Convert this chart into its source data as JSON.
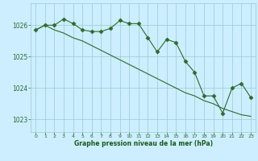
{
  "series1_x": [
    0,
    1,
    2,
    3,
    4,
    5,
    6,
    7,
    8,
    9,
    10,
    11,
    12,
    13,
    14,
    15,
    16,
    17,
    18,
    19,
    20,
    21,
    22,
    23
  ],
  "series1_y": [
    1025.85,
    1026.0,
    1026.0,
    1026.2,
    1026.05,
    1025.85,
    1025.8,
    1025.8,
    1025.9,
    1026.15,
    1026.05,
    1026.05,
    1025.6,
    1025.15,
    1025.55,
    1025.45,
    1024.85,
    1024.5,
    1023.75,
    1023.75,
    1023.2,
    1024.0,
    1024.15,
    1023.7
  ],
  "series2_x": [
    0,
    1,
    2,
    3,
    4,
    5,
    6,
    7,
    8,
    9,
    10,
    11,
    12,
    13,
    14,
    15,
    16,
    17,
    18,
    19,
    20,
    21,
    22,
    23
  ],
  "series2_y": [
    1025.85,
    1026.0,
    1025.85,
    1025.75,
    1025.6,
    1025.5,
    1025.35,
    1025.2,
    1025.05,
    1024.9,
    1024.75,
    1024.6,
    1024.45,
    1024.3,
    1024.15,
    1024.0,
    1023.85,
    1023.75,
    1023.6,
    1023.5,
    1023.35,
    1023.25,
    1023.15,
    1023.1
  ],
  "line_color": "#2d6a2d",
  "marker": "D",
  "marker_size": 2.5,
  "bg_color": "#cceeff",
  "grid_color": "#99cccc",
  "xlabel": "Graphe pression niveau de la mer (hPa)",
  "xlabel_color": "#1a5a1a",
  "ylim_min": 1022.6,
  "ylim_max": 1026.7,
  "yticks": [
    1023,
    1024,
    1025,
    1026
  ],
  "xticks": [
    0,
    1,
    2,
    3,
    4,
    5,
    6,
    7,
    8,
    9,
    10,
    11,
    12,
    13,
    14,
    15,
    16,
    17,
    18,
    19,
    20,
    21,
    22,
    23
  ]
}
